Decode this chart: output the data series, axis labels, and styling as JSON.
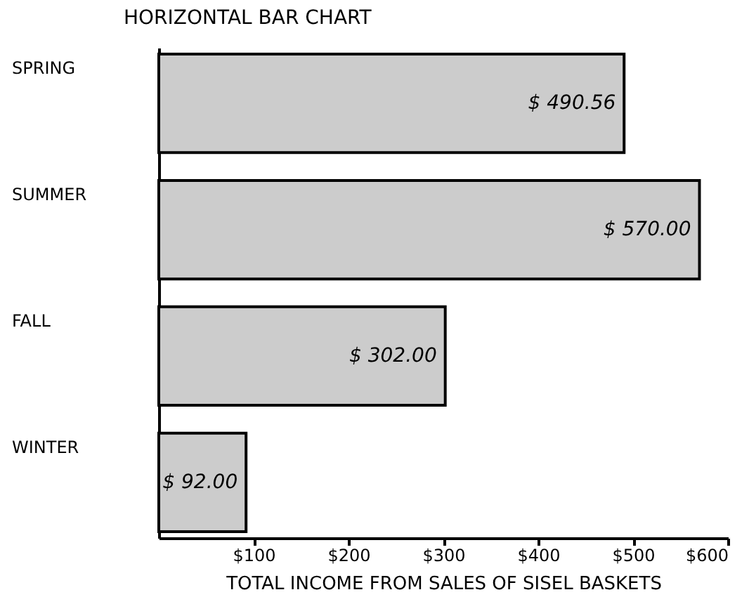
{
  "chart_data": {
    "type": "bar",
    "orientation": "horizontal",
    "title": "HORIZONTAL BAR CHART",
    "xlabel": "TOTAL INCOME FROM SALES OF SISEL BASKETS",
    "categories": [
      "SPRING",
      "SUMMER",
      "FALL",
      "WINTER"
    ],
    "values": [
      490.56,
      570.0,
      302.0,
      92.0
    ],
    "value_labels": [
      "$ 490.56",
      "$ 570.00",
      "$ 302.00",
      "$ 92.00"
    ],
    "color": "#cccccc",
    "xlim": [
      0,
      600
    ],
    "xticks": [
      {
        "value": 100,
        "label": "$100"
      },
      {
        "value": 200,
        "label": "$200"
      },
      {
        "value": 300,
        "label": "$300"
      },
      {
        "value": 400,
        "label": "$400"
      },
      {
        "value": 500,
        "label": "$500"
      },
      {
        "value": 600,
        "label": "$600"
      }
    ],
    "grid": false
  }
}
